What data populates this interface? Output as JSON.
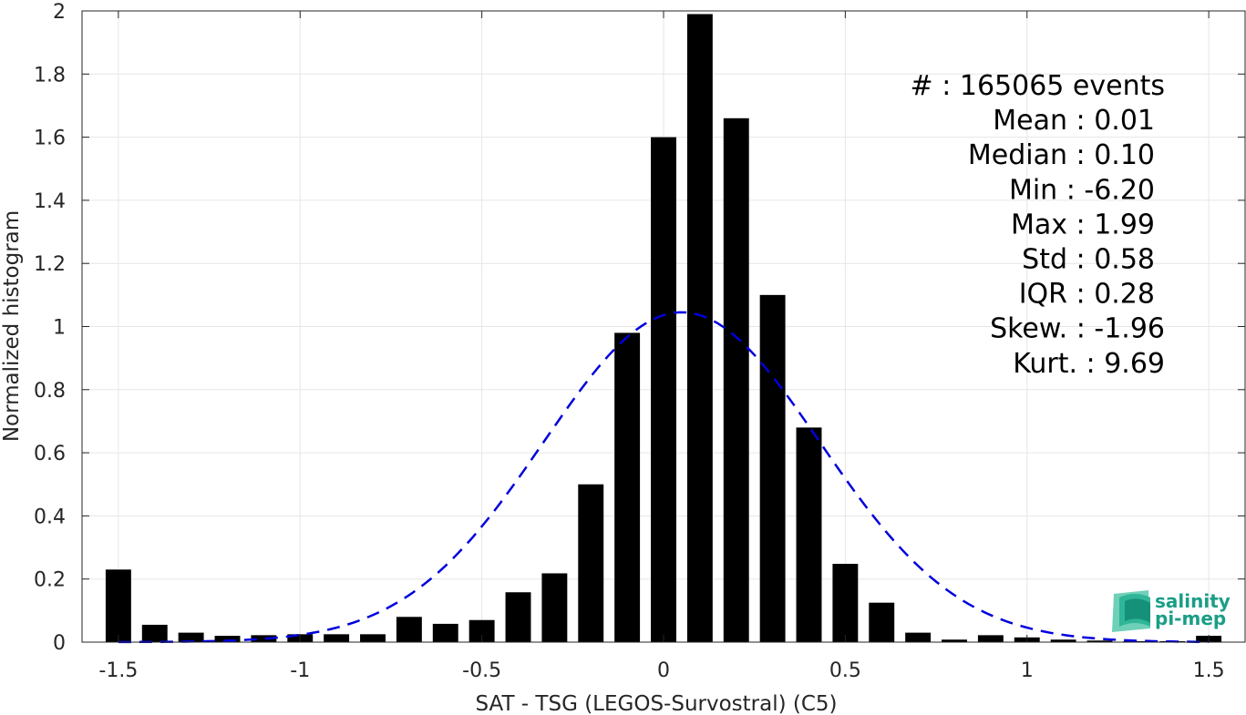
{
  "chart_data": {
    "type": "bar",
    "xlabel": "SAT - TSG (LEGOS-Survostral) (C5)",
    "ylabel": "Normalized histogram",
    "xlim": [
      -1.6,
      1.6
    ],
    "ylim": [
      0,
      2
    ],
    "xticks": [
      -1.5,
      -1,
      -0.5,
      0,
      0.5,
      1,
      1.5
    ],
    "xtick_labels": [
      "-1.5",
      "-1",
      "-0.5",
      "0",
      "0.5",
      "1",
      "1.5"
    ],
    "yticks": [
      0,
      0.2,
      0.4,
      0.6,
      0.8,
      1,
      1.2,
      1.4,
      1.6,
      1.8,
      2
    ],
    "ytick_labels": [
      "0",
      "0.2",
      "0.4",
      "0.6",
      "0.8",
      "1",
      "1.2",
      "1.4",
      "1.6",
      "1.8",
      "2"
    ],
    "grid": true,
    "bar_width": 0.07,
    "bar_color": "#000000",
    "bins": [
      -1.5,
      -1.4,
      -1.3,
      -1.2,
      -1.1,
      -1.0,
      -0.9,
      -0.8,
      -0.7,
      -0.6,
      -0.5,
      -0.4,
      -0.3,
      -0.2,
      -0.1,
      0.0,
      0.1,
      0.2,
      0.3,
      0.4,
      0.5,
      0.6,
      0.7,
      0.8,
      0.9,
      1.0,
      1.1,
      1.2,
      1.3,
      1.4,
      1.5
    ],
    "values": [
      0.23,
      0.055,
      0.03,
      0.02,
      0.022,
      0.025,
      0.025,
      0.025,
      0.08,
      0.058,
      0.07,
      0.158,
      0.218,
      0.5,
      0.98,
      1.6,
      1.99,
      1.66,
      1.1,
      0.68,
      0.248,
      0.125,
      0.03,
      0.008,
      0.022,
      0.015,
      0.008,
      0.005,
      0.003,
      0.003,
      0.02
    ],
    "fit_curve": {
      "type": "gaussian",
      "mean": 0.05,
      "std": 0.38,
      "peak": 1.045,
      "color": "#0000dd",
      "style": "dashed"
    },
    "stats": [
      "#  : 165065 events",
      "Mean : 0.01",
      "Median : 0.10",
      "Min : -6.20",
      "Max : 1.99",
      "Std : 0.58",
      "IQR : 0.28",
      "Skew. : -1.96",
      "Kurt. : 9.69"
    ]
  },
  "logo": {
    "line1": "salinity",
    "line2": "pi-mep"
  }
}
